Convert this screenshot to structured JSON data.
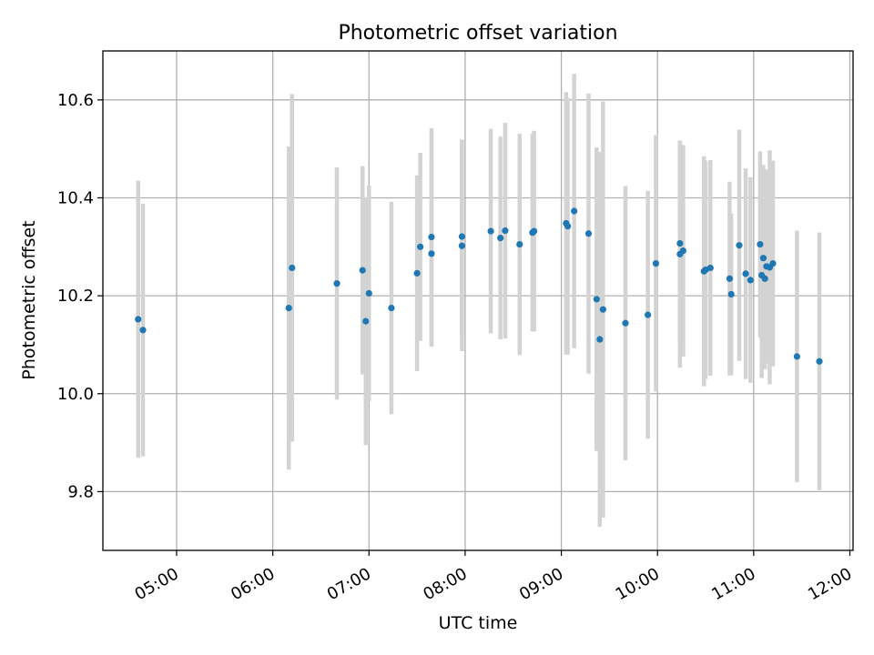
{
  "chart_data": {
    "type": "scatter",
    "title": "Photometric offset variation",
    "xlabel": "UTC time",
    "ylabel": "Photometric offset",
    "grid": true,
    "x_tick_labels": [
      "05:00",
      "06:00",
      "07:00",
      "08:00",
      "09:00",
      "10:00",
      "11:00",
      "12:00"
    ],
    "y_tick_labels": [
      "9.8",
      "10.0",
      "10.2",
      "10.4",
      "10.6"
    ],
    "xlim": [
      "04:14",
      "12:02"
    ],
    "ylim": [
      9.68,
      10.7
    ],
    "colors": {
      "points": "#1f77b4",
      "errorbars": "#d3d3d3"
    },
    "series": [
      {
        "x": [
          "04:36",
          "04:39",
          "06:10",
          "06:12",
          "06:40",
          "06:56",
          "06:58",
          "07:00",
          "07:14",
          "07:30",
          "07:32",
          "07:39",
          "07:39",
          "07:58",
          "07:58",
          "08:16",
          "08:22",
          "08:25",
          "08:34",
          "08:42",
          "08:43",
          "09:03",
          "09:04",
          "09:08",
          "09:17",
          "09:22",
          "09:24",
          "09:26",
          "09:40",
          "09:54",
          "09:59",
          "10:14",
          "10:14",
          "10:16",
          "10:29",
          "10:30",
          "10:33",
          "10:45",
          "10:46",
          "10:51",
          "10:55",
          "10:58",
          "11:04",
          "11:05",
          "11:06",
          "11:07",
          "11:08",
          "11:10",
          "11:12",
          "11:27",
          "11:41"
        ],
        "y": [
          10.152,
          10.13,
          10.175,
          10.257,
          10.225,
          10.252,
          10.148,
          10.205,
          10.175,
          10.246,
          10.3,
          10.286,
          10.32,
          10.302,
          10.321,
          10.332,
          10.318,
          10.333,
          10.305,
          10.329,
          10.332,
          10.348,
          10.342,
          10.373,
          10.327,
          10.193,
          10.111,
          10.172,
          10.144,
          10.161,
          10.266,
          10.285,
          10.307,
          10.292,
          10.25,
          10.253,
          10.257,
          10.235,
          10.203,
          10.303,
          10.245,
          10.232,
          10.305,
          10.242,
          10.277,
          10.235,
          10.26,
          10.258,
          10.266,
          10.076,
          10.066
        ],
        "yerr": [
          0.283,
          0.258,
          0.33,
          0.355,
          0.237,
          0.213,
          0.253,
          0.22,
          0.217,
          0.2,
          0.192,
          0.19,
          0.222,
          0.215,
          0.198,
          0.209,
          0.207,
          0.22,
          0.226,
          0.202,
          0.205,
          0.268,
          0.262,
          0.28,
          0.286,
          0.31,
          0.383,
          0.425,
          0.28,
          0.253,
          0.262,
          0.232,
          0.21,
          0.216,
          0.235,
          0.223,
          0.22,
          0.198,
          0.165,
          0.236,
          0.215,
          0.21,
          0.19,
          0.21,
          0.19,
          0.185,
          0.198,
          0.239,
          0.21,
          0.257,
          0.263
        ]
      }
    ]
  }
}
